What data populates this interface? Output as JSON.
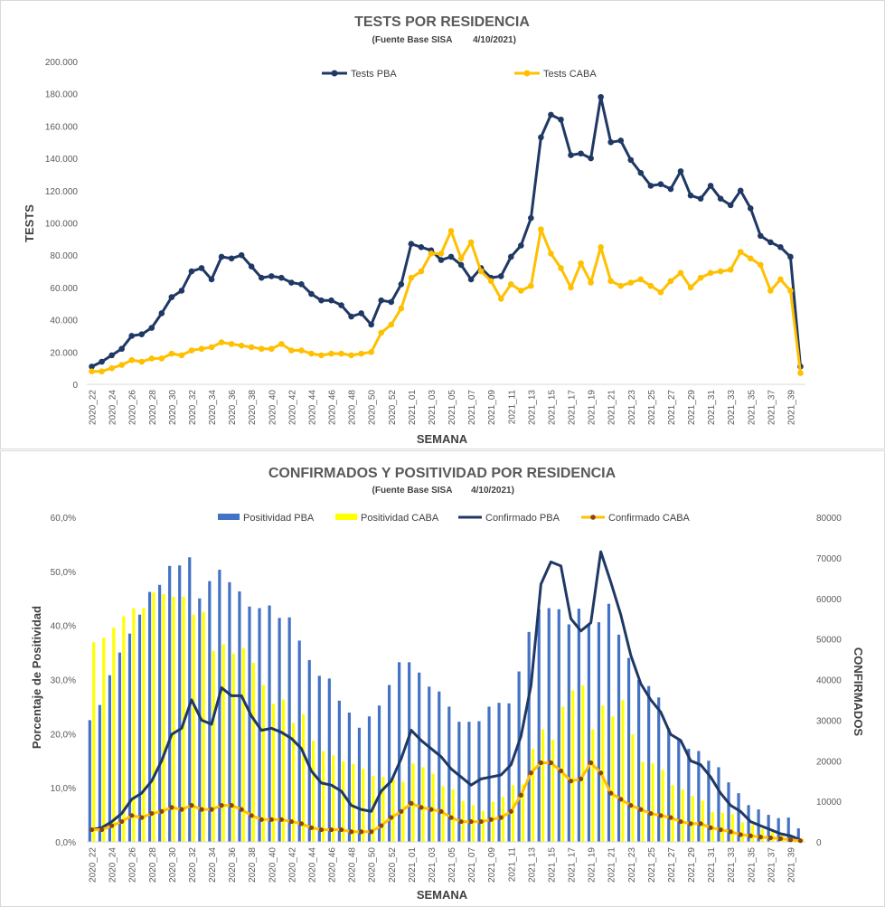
{
  "chart_data": [
    {
      "type": "line",
      "title": "TESTS POR RESIDENCIA",
      "subtitle": "(Fuente Base SISA",
      "date": "4/10/2021)",
      "xlabel": "SEMANA",
      "ylabel": "TESTS",
      "ylim": [
        0,
        200000
      ],
      "yticks": [
        "0",
        "20.000",
        "40.000",
        "60.000",
        "80.000",
        "100.000",
        "120.000",
        "140.000",
        "160.000",
        "180.000",
        "200.000"
      ],
      "legend_position": "top-center",
      "categories": [
        "2020_22",
        "2020_23",
        "2020_24",
        "2020_25",
        "2020_26",
        "2020_27",
        "2020_28",
        "2020_29",
        "2020_30",
        "2020_31",
        "2020_32",
        "2020_33",
        "2020_34",
        "2020_35",
        "2020_36",
        "2020_37",
        "2020_38",
        "2020_39",
        "2020_40",
        "2020_41",
        "2020_42",
        "2020_43",
        "2020_44",
        "2020_45",
        "2020_46",
        "2020_47",
        "2020_48",
        "2020_49",
        "2020_50",
        "2020_51",
        "2020_52",
        "2020_53",
        "2021_01",
        "2021_02",
        "2021_03",
        "2021_04",
        "2021_05",
        "2021_06",
        "2021_07",
        "2021_08",
        "2021_09",
        "2021_10",
        "2021_11",
        "2021_12",
        "2021_13",
        "2021_14",
        "2021_15",
        "2021_16",
        "2021_17",
        "2021_18",
        "2021_19",
        "2021_20",
        "2021_21",
        "2021_22",
        "2021_23",
        "2021_24",
        "2021_25",
        "2021_26",
        "2021_27",
        "2021_28",
        "2021_29",
        "2021_30",
        "2021_31",
        "2021_32",
        "2021_33",
        "2021_34",
        "2021_35",
        "2021_36",
        "2021_37",
        "2021_38",
        "2021_39",
        "2021_40"
      ],
      "tick_labels": [
        "2020_22",
        "2020_24",
        "2020_26",
        "2020_28",
        "2020_30",
        "2020_32",
        "2020_34",
        "2020_36",
        "2020_38",
        "2020_40",
        "2020_42",
        "2020_44",
        "2020_46",
        "2020_48",
        "2020_50",
        "2020_52",
        "2021_01",
        "2021_03",
        "2021_05",
        "2021_07",
        "2021_09",
        "2021_11",
        "2021_13",
        "2021_15",
        "2021_17",
        "2021_19",
        "2021_21",
        "2021_23",
        "2021_25",
        "2021_27",
        "2021_29",
        "2021_31",
        "2021_33",
        "2021_35",
        "2021_37",
        "2021_39"
      ],
      "series": [
        {
          "name": "Tests PBA",
          "color": "#1f3864",
          "values": [
            11000,
            14000,
            18000,
            22000,
            30000,
            31000,
            35000,
            44000,
            54000,
            58000,
            70000,
            72000,
            65000,
            79000,
            78000,
            80000,
            73000,
            66000,
            67000,
            66000,
            63000,
            62000,
            56000,
            52000,
            52000,
            49000,
            42000,
            44000,
            37000,
            52000,
            51000,
            62000,
            87000,
            85000,
            83000,
            77000,
            79000,
            74000,
            65000,
            72000,
            66000,
            67000,
            79000,
            86000,
            103000,
            153000,
            167000,
            164000,
            142000,
            143000,
            140000,
            178000,
            150000,
            151000,
            139000,
            131000,
            123000,
            124000,
            121000,
            132000,
            117000,
            115000,
            123000,
            115000,
            111000,
            120000,
            109000,
            92000,
            88000,
            85000,
            79000,
            11000
          ]
        },
        {
          "name": "Tests CABA",
          "color": "#ffc000",
          "values": [
            8000,
            8000,
            10000,
            12000,
            15000,
            14000,
            16000,
            16000,
            19000,
            18000,
            21000,
            22000,
            23000,
            26000,
            25000,
            24000,
            23000,
            22000,
            22000,
            25000,
            21000,
            21000,
            19000,
            18000,
            19000,
            19000,
            18000,
            19000,
            20000,
            32000,
            37000,
            47000,
            66000,
            70000,
            81000,
            81000,
            95000,
            78000,
            88000,
            70000,
            64000,
            53000,
            62000,
            58000,
            61000,
            96000,
            81000,
            72000,
            60000,
            75000,
            63000,
            85000,
            64000,
            61000,
            63000,
            65000,
            61000,
            57000,
            64000,
            69000,
            60000,
            66000,
            69000,
            70000,
            71000,
            82000,
            78000,
            74000,
            58000,
            65000,
            58000,
            7000
          ]
        }
      ]
    },
    {
      "type": "bar",
      "title": "CONFIRMADOS Y POSITIVIDAD POR RESIDENCIA",
      "subtitle": "(Fuente Base SISA",
      "date": "4/10/2021)",
      "xlabel": "SEMANA",
      "ylabel": "Porcentaje de Positividad",
      "y2label": "CONFIRMADOS",
      "ylim": [
        0,
        60
      ],
      "y2lim": [
        0,
        80000
      ],
      "yticks": [
        "0,0%",
        "10,0%",
        "20,0%",
        "30,0%",
        "40,0%",
        "50,0%",
        "60,0%"
      ],
      "y2ticks": [
        "0",
        "10000",
        "20000",
        "30000",
        "40000",
        "50000",
        "60000",
        "70000",
        "80000"
      ],
      "legend_position": "top-center",
      "series": [
        {
          "name": "Positividad PBA",
          "type": "bar",
          "axis": "left",
          "color": "#4472c4",
          "values": [
            22.5,
            25.3,
            30.8,
            35,
            38.5,
            42,
            46.2,
            47.5,
            51,
            51.1,
            52.6,
            45,
            48.2,
            50.3,
            48,
            46.3,
            43.5,
            43.2,
            43.7,
            41.4,
            41.5,
            37.2,
            33.6,
            30.7,
            30.2,
            26.1,
            23.9,
            21.1,
            23.2,
            25.2,
            29,
            33.2,
            33.2,
            31.3,
            28.7,
            27.8,
            25,
            22.2,
            22.2,
            22.3,
            25,
            25.7,
            25.6,
            31.5,
            38.8,
            43,
            43.2,
            43,
            40.2,
            43.1,
            40.2,
            40.6,
            44,
            38.3,
            34,
            29.9,
            28.8,
            26.7,
            21,
            19,
            17.2,
            16.8,
            15,
            13.8,
            11,
            9,
            6.8,
            6,
            5,
            4.4,
            4.5,
            2.5
          ]
        },
        {
          "name": "Positividad CABA",
          "type": "bar",
          "axis": "left",
          "color": "#ffff00",
          "values": [
            36.9,
            37.7,
            39.6,
            41.7,
            43.2,
            43.2,
            46.1,
            45.8,
            45.3,
            45.3,
            42,
            42.5,
            35.3,
            36.5,
            34.8,
            35.8,
            33.1,
            29,
            25.5,
            26.3,
            22,
            23.6,
            18.7,
            16.8,
            16,
            14.9,
            14.4,
            13.5,
            12.2,
            12,
            11.8,
            11.1,
            14.5,
            13.8,
            12.6,
            10.3,
            9.7,
            7.6,
            6.8,
            5.7,
            7.4,
            8.3,
            10.5,
            10.6,
            17.2,
            20.8,
            18.9,
            25,
            28,
            28.9,
            20.8,
            25.2,
            23.2,
            26.2,
            19.9,
            14.8,
            14.5,
            13.3,
            10.5,
            9.7,
            8.5,
            7.6,
            5.5,
            5.4,
            5.1,
            3.6,
            3.2,
            2.4,
            2,
            1.4,
            1,
            0.5
          ]
        },
        {
          "name": "Confirmado PBA",
          "type": "line",
          "axis": "right",
          "color": "#1f3864",
          "values": [
            3000,
            3500,
            5000,
            7000,
            10500,
            12000,
            15000,
            20000,
            26500,
            28000,
            35000,
            30000,
            29000,
            38000,
            36000,
            36000,
            31000,
            27500,
            28000,
            27000,
            25500,
            23000,
            17500,
            14500,
            14000,
            12500,
            9000,
            8000,
            7500,
            12500,
            15000,
            20500,
            27500,
            25000,
            23000,
            21000,
            18000,
            16000,
            14000,
            15500,
            16000,
            16500,
            19000,
            26000,
            38500,
            63500,
            69000,
            68000,
            55000,
            52000,
            54000,
            71500,
            64000,
            56000,
            46000,
            39000,
            35000,
            32000,
            26500,
            25000,
            20000,
            19000,
            16000,
            12000,
            9000,
            7500,
            5000,
            4000,
            3000,
            2000,
            1500,
            500
          ]
        },
        {
          "name": "Confirmado CABA",
          "type": "line",
          "axis": "right",
          "color": "#ffc000",
          "values": [
            3000,
            3000,
            4000,
            5000,
            6500,
            6000,
            7000,
            7500,
            8500,
            8000,
            9000,
            8000,
            8000,
            9000,
            9000,
            8000,
            6500,
            5500,
            5500,
            5500,
            5000,
            4500,
            3500,
            3000,
            3000,
            3000,
            2500,
            2500,
            2500,
            4000,
            6000,
            7500,
            9500,
            8500,
            8000,
            7500,
            6000,
            5000,
            5000,
            5000,
            5500,
            6000,
            7500,
            11500,
            17000,
            19500,
            19500,
            17500,
            15000,
            15500,
            19500,
            17000,
            12000,
            10500,
            9000,
            8000,
            7000,
            6500,
            6000,
            5000,
            4500,
            4500,
            3500,
            3000,
            2500,
            1800,
            1500,
            1200,
            1000,
            800,
            500,
            300
          ]
        }
      ]
    }
  ]
}
